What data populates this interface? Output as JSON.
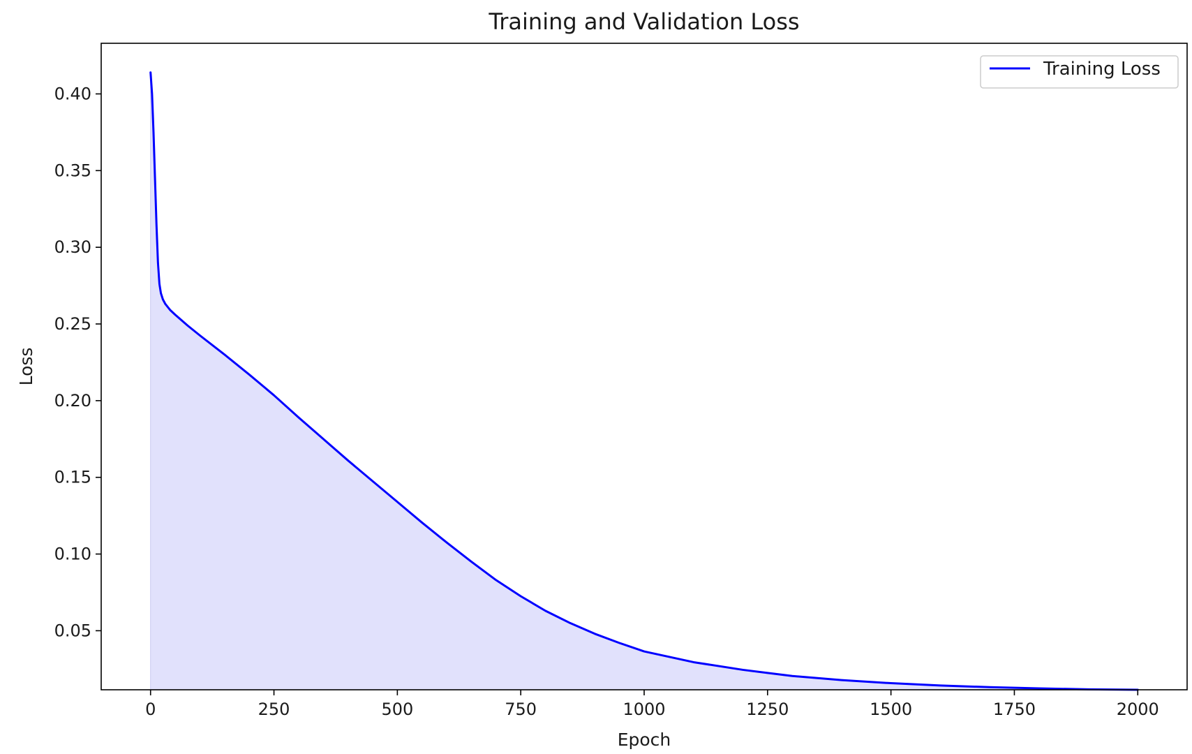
{
  "chart_data": {
    "type": "line",
    "title": "Training and Validation Loss",
    "xlabel": "Epoch",
    "ylabel": "Loss",
    "xlim": [
      -100,
      2100
    ],
    "ylim": [
      0.0115,
      0.433
    ],
    "xticks": [
      0,
      250,
      500,
      750,
      1000,
      1250,
      1500,
      1750,
      2000
    ],
    "yticks": [
      0.05,
      0.1,
      0.15,
      0.2,
      0.25,
      0.3,
      0.35,
      0.4
    ],
    "ytick_labels": [
      "0.05",
      "0.10",
      "0.15",
      "0.20",
      "0.25",
      "0.30",
      "0.35",
      "0.40"
    ],
    "grid": false,
    "legend": {
      "placement": "top-right",
      "entries": [
        "Training Loss"
      ]
    },
    "series": [
      {
        "name": "Training Loss",
        "color": "#0000ff",
        "fill_color": "#e1e1fc",
        "filled": true,
        "x": [
          0,
          3,
          6,
          9,
          12,
          15,
          18,
          21,
          25,
          30,
          40,
          50,
          75,
          100,
          150,
          200,
          250,
          300,
          350,
          400,
          450,
          500,
          550,
          600,
          650,
          700,
          750,
          800,
          850,
          900,
          950,
          1000,
          1100,
          1200,
          1250,
          1300,
          1400,
          1500,
          1600,
          1700,
          1750,
          1800,
          1900,
          2000
        ],
        "y": [
          0.414,
          0.4,
          0.375,
          0.345,
          0.315,
          0.29,
          0.276,
          0.27,
          0.266,
          0.263,
          0.259,
          0.256,
          0.249,
          0.2425,
          0.23,
          0.217,
          0.2035,
          0.189,
          0.175,
          0.161,
          0.1475,
          0.134,
          0.1205,
          0.1075,
          0.095,
          0.083,
          0.0725,
          0.063,
          0.055,
          0.048,
          0.042,
          0.0365,
          0.0295,
          0.0245,
          0.0225,
          0.0205,
          0.0178,
          0.0158,
          0.0143,
          0.0132,
          0.0128,
          0.0124,
          0.0118,
          0.0115
        ]
      }
    ]
  }
}
